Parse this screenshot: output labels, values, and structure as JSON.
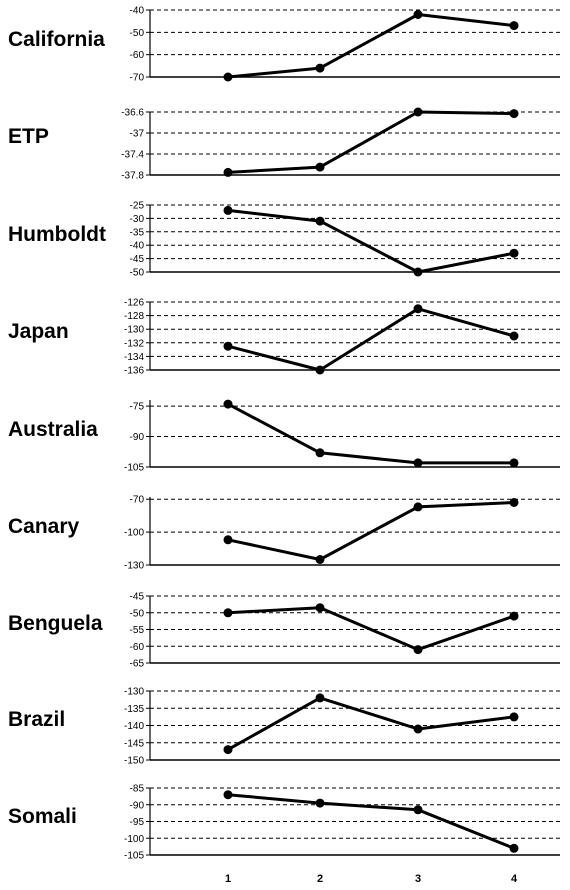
{
  "chart_data": [
    {
      "type": "line",
      "region": "California",
      "x": [
        1,
        2,
        3,
        4
      ],
      "values": [
        -70,
        -66,
        -42,
        -47
      ],
      "ylim": [
        -70,
        -40
      ],
      "yticks": [
        "-40",
        "-50",
        "-60",
        "-70"
      ]
    },
    {
      "type": "line",
      "region": "ETP",
      "x": [
        1,
        2,
        3,
        4
      ],
      "values": [
        -37.75,
        -37.65,
        -36.6,
        -36.63
      ],
      "ylim": [
        -37.8,
        -36.6
      ],
      "yticks": [
        "-36.6",
        "-37",
        "-37.4",
        "-37.8"
      ]
    },
    {
      "type": "line",
      "region": "Humboldt",
      "x": [
        1,
        2,
        3,
        4
      ],
      "values": [
        -27,
        -31,
        -50,
        -43
      ],
      "ylim": [
        -50,
        -25
      ],
      "yticks": [
        "-25",
        "-30",
        "-35",
        "-40",
        "-45",
        "-50"
      ]
    },
    {
      "type": "line",
      "region": "Japan",
      "x": [
        1,
        2,
        3,
        4
      ],
      "values": [
        -132.5,
        -136,
        -127,
        -131
      ],
      "ylim": [
        -136,
        -126
      ],
      "yticks": [
        "-126",
        "-128",
        "-130",
        "-132",
        "-134",
        "-136"
      ]
    },
    {
      "type": "line",
      "region": "Australia",
      "x": [
        1,
        2,
        3,
        4
      ],
      "values": [
        -74,
        -98,
        -103,
        -103
      ],
      "ylim": [
        -105,
        -72
      ],
      "yticks": [
        "-75",
        "-90",
        "-105"
      ]
    },
    {
      "type": "line",
      "region": "Canary",
      "x": [
        1,
        2,
        3,
        4
      ],
      "values": [
        -107,
        -125,
        -77,
        -73
      ],
      "ylim": [
        -130,
        -68
      ],
      "yticks": [
        "-70",
        "-100",
        "-130"
      ]
    },
    {
      "type": "line",
      "region": "Benguela",
      "x": [
        1,
        2,
        3,
        4
      ],
      "values": [
        -50,
        -48.5,
        -61,
        -51
      ],
      "ylim": [
        -65,
        -45
      ],
      "yticks": [
        "-45",
        "-50",
        "-55",
        "-60",
        "-65"
      ]
    },
    {
      "type": "line",
      "region": "Brazil",
      "x": [
        1,
        2,
        3,
        4
      ],
      "values": [
        -147,
        -132,
        -141,
        -137.5
      ],
      "ylim": [
        -150,
        -130
      ],
      "yticks": [
        "-130",
        "-135",
        "-140",
        "-145",
        "-150"
      ]
    },
    {
      "type": "line",
      "region": "Somali",
      "x": [
        1,
        2,
        3,
        4
      ],
      "values": [
        -87,
        -89.5,
        -91.5,
        -103
      ],
      "ylim": [
        -105,
        -85
      ],
      "yticks": [
        "-85",
        "-90",
        "-95",
        "-100",
        "-105"
      ]
    }
  ],
  "x_ticks": [
    "1",
    "2",
    "3",
    "4"
  ],
  "labels": {
    "california": "California",
    "etp": "ETP",
    "humboldt": "Humboldt",
    "japan": "Japan",
    "australia": "Australia",
    "canary": "Canary",
    "benguela": "Benguela",
    "brazil": "Brazil",
    "somali": "Somali"
  },
  "style": {
    "line_color": "#000000",
    "grid": "dashed"
  }
}
